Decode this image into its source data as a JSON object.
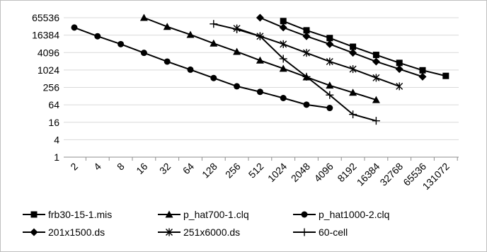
{
  "chart_data": {
    "type": "line",
    "title": "",
    "xlabel": "",
    "ylabel": "",
    "y_scale": "log2",
    "ylim": [
      1,
      65536
    ],
    "grid": "horizontal",
    "legend_position": "bottom",
    "line_color": "#000000",
    "y_ticks": [
      "1",
      "4",
      "16",
      "64",
      "256",
      "1024",
      "4096",
      "16384",
      "65536"
    ],
    "categories": [
      "2",
      "4",
      "8",
      "16",
      "32",
      "64",
      "128",
      "256",
      "512",
      "1024",
      "2048",
      "4096",
      "8192",
      "16384",
      "32768",
      "65536",
      "131072"
    ],
    "series": [
      {
        "name": "frb30-15-1.mis",
        "marker": "square",
        "points": [
          [
            1024,
            50000
          ],
          [
            2048,
            24000
          ],
          [
            4096,
            13000
          ],
          [
            8192,
            6500
          ],
          [
            16384,
            3400
          ],
          [
            32768,
            1800
          ],
          [
            65536,
            1000
          ],
          [
            131072,
            640
          ]
        ]
      },
      {
        "name": "p_hat700-1.clq",
        "marker": "triangle",
        "points": [
          [
            16,
            65536
          ],
          [
            32,
            32000
          ],
          [
            64,
            17000
          ],
          [
            128,
            8500
          ],
          [
            256,
            4400
          ],
          [
            512,
            2200
          ],
          [
            1024,
            1150
          ],
          [
            2048,
            580
          ],
          [
            4096,
            300
          ],
          [
            8192,
            170
          ],
          [
            16384,
            95
          ]
        ]
      },
      {
        "name": "p_hat1000-2.clq",
        "marker": "circle",
        "points": [
          [
            2,
            30000
          ],
          [
            4,
            15000
          ],
          [
            8,
            8000
          ],
          [
            16,
            4000
          ],
          [
            32,
            2000
          ],
          [
            64,
            1050
          ],
          [
            128,
            540
          ],
          [
            256,
            280
          ],
          [
            512,
            180
          ],
          [
            1024,
            110
          ],
          [
            2048,
            65
          ],
          [
            4096,
            50
          ]
        ]
      },
      {
        "name": "201x1500.ds",
        "marker": "diamond",
        "points": [
          [
            512,
            65536
          ],
          [
            1024,
            30000
          ],
          [
            2048,
            15000
          ],
          [
            4096,
            8000
          ],
          [
            8192,
            4000
          ],
          [
            16384,
            2000
          ],
          [
            32768,
            1100
          ],
          [
            65536,
            600
          ]
        ]
      },
      {
        "name": "251x6000.ds",
        "marker": "star",
        "points": [
          [
            256,
            28000
          ],
          [
            512,
            15000
          ],
          [
            1024,
            8000
          ],
          [
            2048,
            4000
          ],
          [
            4096,
            2000
          ],
          [
            8192,
            1100
          ],
          [
            16384,
            550
          ],
          [
            32768,
            280
          ]
        ]
      },
      {
        "name": "60-cell",
        "marker": "plus",
        "points": [
          [
            128,
            40000
          ],
          [
            256,
            26000
          ],
          [
            512,
            15000
          ],
          [
            1024,
            2500
          ],
          [
            2048,
            600
          ],
          [
            4096,
            140
          ],
          [
            8192,
            30
          ],
          [
            16384,
            18
          ]
        ]
      }
    ]
  }
}
